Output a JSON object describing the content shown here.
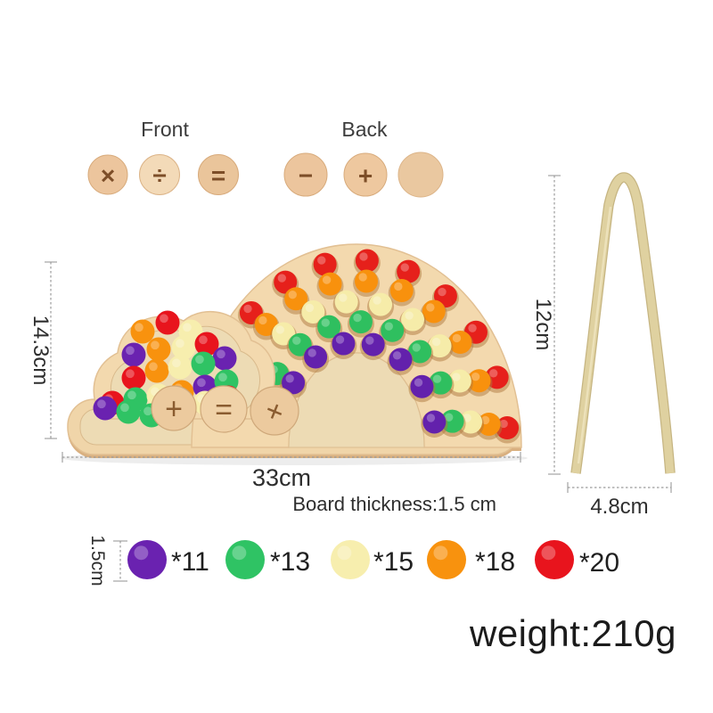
{
  "header": {
    "front_label": "Front",
    "back_label": "Back",
    "front_symbols": [
      "×",
      "÷",
      "="
    ],
    "back_symbols": [
      "−",
      "+",
      ""
    ]
  },
  "board": {
    "height_label": "14.3cm",
    "width_label": "33cm",
    "thickness_label": "Board thickness:1.5 cm",
    "disc_symbols": [
      "+",
      "=",
      "+"
    ],
    "wood_color": "#f3d9ae",
    "wood_recess_color": "#eddbb4",
    "wood_edge_color": "#d9b080",
    "rainbow_rows": [
      {
        "color_name": "red",
        "hex": "#e6201b",
        "count": 10
      },
      {
        "color_name": "orange",
        "hex": "#f8910d",
        "count": 10
      },
      {
        "color_name": "yellow",
        "hex": "#f6eca9",
        "count": 9
      },
      {
        "color_name": "green",
        "hex": "#2fbf5f",
        "count": 8
      },
      {
        "color_name": "purple",
        "hex": "#6321ac",
        "count": 7
      }
    ]
  },
  "tweezers": {
    "height_label": "12cm",
    "width_label": "4.8cm",
    "bamboo_color": "#dfd1a0"
  },
  "legend": {
    "size_label": "1.5cm",
    "items": [
      {
        "color_name": "purple",
        "hex": "#6a22b0",
        "count_label": "*11"
      },
      {
        "color_name": "green",
        "hex": "#2fc364",
        "count_label": "*13"
      },
      {
        "color_name": "cream",
        "hex": "#f7eeae",
        "count_label": "*15"
      },
      {
        "color_name": "orange",
        "hex": "#f8920e",
        "count_label": "*18"
      },
      {
        "color_name": "red",
        "hex": "#e8141d",
        "count_label": "*20"
      }
    ]
  },
  "weight_label": "weight:210g"
}
